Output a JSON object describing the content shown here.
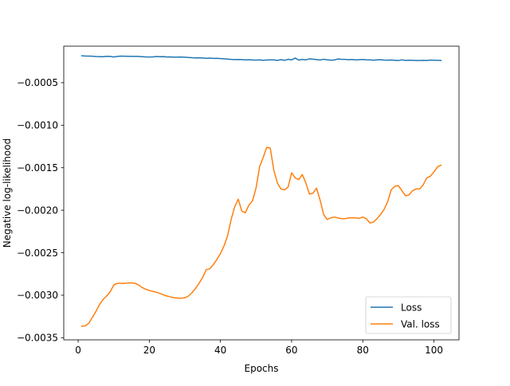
{
  "chart_data": {
    "type": "line",
    "title": "",
    "xlabel": "Epochs",
    "ylabel": "Negative log-likelihood",
    "xlim": [
      -4.05,
      107.05
    ],
    "ylim": [
      -0.003525,
      -7e-05
    ],
    "xticks": [
      0,
      20,
      40,
      60,
      80,
      100
    ],
    "xtick_labels": [
      "0",
      "20",
      "40",
      "60",
      "80",
      "100"
    ],
    "yticks": [
      -0.0035,
      -0.003,
      -0.0025,
      -0.002,
      -0.0015,
      -0.001,
      -0.0005
    ],
    "ytick_labels": [
      "−0.0035",
      "−0.0030",
      "−0.0025",
      "−0.0020",
      "−0.0015",
      "−0.0010",
      "−0.0005"
    ],
    "grid": false,
    "legend_position": "lower right",
    "x": [
      1,
      2,
      3,
      4,
      5,
      6,
      7,
      8,
      9,
      10,
      11,
      12,
      13,
      14,
      15,
      16,
      17,
      18,
      19,
      20,
      21,
      22,
      23,
      24,
      25,
      26,
      27,
      28,
      29,
      30,
      31,
      32,
      33,
      34,
      35,
      36,
      37,
      38,
      39,
      40,
      41,
      42,
      43,
      44,
      45,
      46,
      47,
      48,
      49,
      50,
      51,
      52,
      53,
      54,
      55,
      56,
      57,
      58,
      59,
      60,
      61,
      62,
      63,
      64,
      65,
      66,
      67,
      68,
      69,
      70,
      71,
      72,
      73,
      74,
      75,
      76,
      77,
      78,
      79,
      80,
      81,
      82,
      83,
      84,
      85,
      86,
      87,
      88,
      89,
      90,
      91,
      92,
      93,
      94,
      95,
      96,
      97,
      98,
      99,
      100,
      101,
      102
    ],
    "series": [
      {
        "name": "Loss",
        "color": "#1f77b4",
        "values": [
          -0.000183,
          -0.000186,
          -0.000187,
          -0.000188,
          -0.000192,
          -0.000193,
          -0.000194,
          -0.000189,
          -0.000191,
          -0.000198,
          -0.00019,
          -0.000187,
          -0.000188,
          -0.000189,
          -0.000189,
          -0.00019,
          -0.000191,
          -0.000194,
          -0.000197,
          -0.000198,
          -0.000196,
          -0.000192,
          -0.000194,
          -0.000193,
          -0.000198,
          -0.000196,
          -0.0002,
          -0.000199,
          -0.000198,
          -0.0002,
          -0.000203,
          -0.000206,
          -0.000208,
          -0.000207,
          -0.000209,
          -0.000213,
          -0.000211,
          -0.000214,
          -0.000213,
          -0.000216,
          -0.000219,
          -0.000222,
          -0.000226,
          -0.000228,
          -0.000227,
          -0.000228,
          -0.000231,
          -0.000229,
          -0.000233,
          -0.000234,
          -0.000232,
          -0.000236,
          -0.000233,
          -0.000232,
          -0.000231,
          -0.000237,
          -0.000229,
          -0.000236,
          -0.000225,
          -0.000231,
          -0.00021,
          -0.000234,
          -0.000226,
          -0.000231,
          -0.000219,
          -0.000223,
          -0.000228,
          -0.000233,
          -0.000224,
          -0.00023,
          -0.000235,
          -0.000233,
          -0.000221,
          -0.000225,
          -0.000226,
          -0.000229,
          -0.000227,
          -0.000231,
          -0.000229,
          -0.000227,
          -0.00023,
          -0.000232,
          -0.000235,
          -0.000232,
          -0.000229,
          -0.000234,
          -0.000235,
          -0.000233,
          -0.000236,
          -0.000239,
          -0.000231,
          -0.000237,
          -0.000235,
          -0.000236,
          -0.000239,
          -0.000238,
          -0.000236,
          -0.000239,
          -0.000234,
          -0.000235,
          -0.000236,
          -0.000238
        ]
      },
      {
        "name": "Val. loss",
        "color": "#ff7f0e",
        "values": [
          -0.003365,
          -0.00336,
          -0.00333,
          -0.00326,
          -0.00319,
          -0.00311,
          -0.00305,
          -0.00301,
          -0.00296,
          -0.00288,
          -0.00286,
          -0.00286,
          -0.00286,
          -0.002855,
          -0.002855,
          -0.00286,
          -0.00288,
          -0.00291,
          -0.00293,
          -0.002945,
          -0.002955,
          -0.002965,
          -0.00298,
          -0.002995,
          -0.00301,
          -0.00302,
          -0.00303,
          -0.003035,
          -0.003035,
          -0.00303,
          -0.00301,
          -0.00297,
          -0.00292,
          -0.00286,
          -0.00279,
          -0.0027,
          -0.00269,
          -0.00264,
          -0.00258,
          -0.00251,
          -0.00242,
          -0.0023,
          -0.00211,
          -0.00196,
          -0.00187,
          -0.00201,
          -0.00203,
          -0.00194,
          -0.00189,
          -0.00174,
          -0.00149,
          -0.00138,
          -0.00126,
          -0.00127,
          -0.00153,
          -0.00168,
          -0.00175,
          -0.00176,
          -0.00173,
          -0.00156,
          -0.00162,
          -0.00164,
          -0.00158,
          -0.00168,
          -0.00181,
          -0.0018,
          -0.00174,
          -0.00188,
          -0.00205,
          -0.00211,
          -0.00209,
          -0.00208,
          -0.00209,
          -0.0021,
          -0.0021,
          -0.00209,
          -0.00209,
          -0.00209,
          -0.002095,
          -0.00208,
          -0.0021,
          -0.00215,
          -0.00214,
          -0.0021,
          -0.00205,
          -0.00199,
          -0.0019,
          -0.00176,
          -0.00172,
          -0.00171,
          -0.00177,
          -0.00183,
          -0.00182,
          -0.00177,
          -0.00175,
          -0.00175,
          -0.0017,
          -0.00162,
          -0.0016,
          -0.00155,
          -0.00149,
          -0.00147
        ]
      }
    ]
  }
}
